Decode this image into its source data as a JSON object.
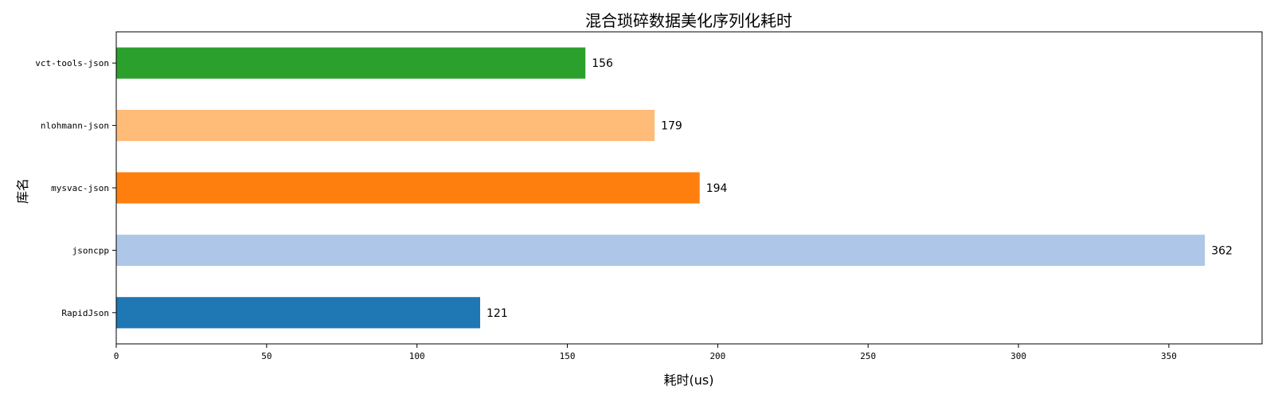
{
  "chart_data": {
    "type": "bar",
    "orientation": "horizontal",
    "title": "混合琐碎数据美化序列化耗时",
    "xlabel": "耗时(us)",
    "ylabel": "库名",
    "categories": [
      "RapidJson",
      "jsoncpp",
      "mysvac-json",
      "nlohmann-json",
      "vct-tools-json"
    ],
    "values": [
      121,
      362,
      194,
      179,
      156
    ],
    "colors": [
      "#1f77b4",
      "#aec7e8",
      "#ff7f0e",
      "#ffbb78",
      "#2ca02c"
    ],
    "xlim": [
      0,
      381
    ],
    "xticks": [
      0,
      50,
      100,
      150,
      200,
      250,
      300,
      350
    ],
    "grid": false,
    "legend": "none"
  }
}
